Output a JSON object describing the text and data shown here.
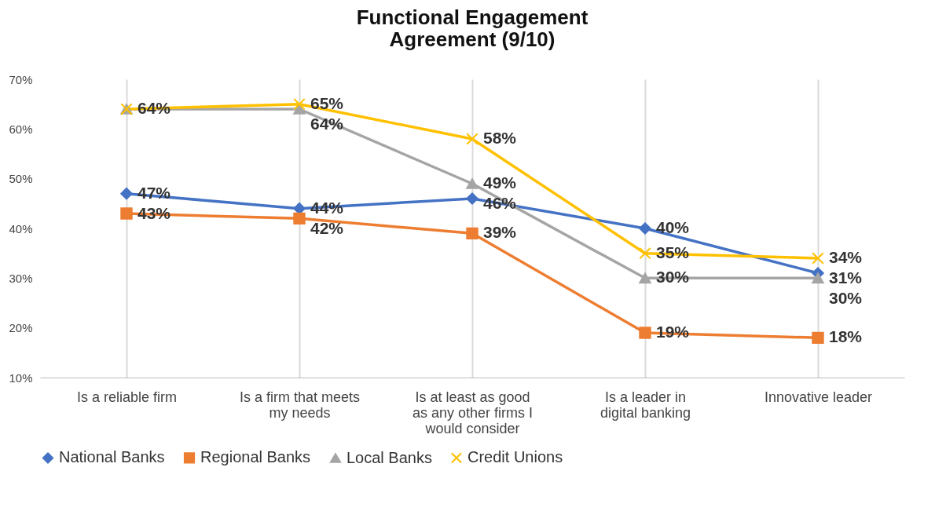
{
  "chart_data": {
    "type": "line",
    "title": "Functional Engagement Agreement (9/10)",
    "categories": [
      "Is a reliable firm",
      "Is a firm that meets my needs",
      "Is at least as good as any other firms I would consider",
      "Is a leader in digital banking",
      "Innovative leader"
    ],
    "series": [
      {
        "name": "National Banks",
        "color": "#4472c4",
        "marker": "diamond",
        "values": [
          47,
          44,
          46,
          40,
          31
        ],
        "value_labels": [
          "47%",
          "44%",
          "46%",
          "40%",
          "31%"
        ]
      },
      {
        "name": "Regional Banks",
        "color": "#ed7d31",
        "marker": "square",
        "values": [
          43,
          42,
          39,
          19,
          18
        ],
        "value_labels": [
          "43%",
          "42%",
          "39%",
          "19%",
          "18%"
        ]
      },
      {
        "name": "Local Banks",
        "color": "#a5a5a5",
        "marker": "triangle",
        "values": [
          64,
          64,
          49,
          30,
          30
        ],
        "value_labels": [
          null,
          "64%",
          "49%",
          "30%",
          "30%"
        ]
      },
      {
        "name": "Credit Unions",
        "color": "#ffc000",
        "marker": "cross",
        "values": [
          64,
          65,
          58,
          35,
          34
        ],
        "value_labels": [
          "64%",
          "65%",
          "58%",
          "35%",
          "34%"
        ]
      }
    ],
    "ylim": [
      10,
      70
    ],
    "yticks": [
      {
        "value": 10,
        "label": "10%"
      },
      {
        "value": 20,
        "label": "20%"
      },
      {
        "value": 30,
        "label": "30%"
      },
      {
        "value": 40,
        "label": "40%"
      },
      {
        "value": 50,
        "label": "50%"
      },
      {
        "value": 60,
        "label": "60%"
      },
      {
        "value": 70,
        "label": "70%"
      }
    ],
    "grid": "x",
    "legend": "bottom"
  }
}
